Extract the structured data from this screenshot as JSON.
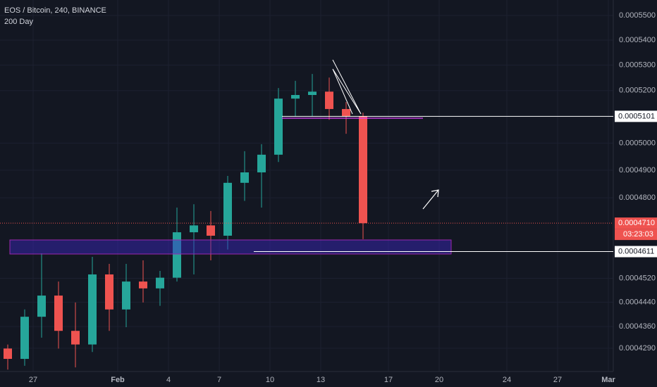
{
  "chart_data": {
    "type": "candlestick",
    "title": "EOS / Bitcoin, 240, BINANCE",
    "subtitle": "200 Day",
    "categories": [
      null,
      null,
      "27",
      null,
      null,
      null,
      null,
      "Feb",
      null,
      null,
      "4",
      null,
      null,
      "7",
      null,
      null,
      "10",
      null,
      null,
      "13",
      null,
      null,
      null,
      "17",
      null,
      null,
      "20",
      null,
      null,
      null,
      "24",
      null,
      null,
      "27",
      null,
      null,
      "Mar"
    ],
    "open": [
      0.0004289,
      0.0004256,
      0.0004392,
      0.0004462,
      0.0004346,
      0.0004302,
      0.0004533,
      0.0004416,
      0.0004509,
      0.0004486,
      0.0004522,
      0.0004678,
      0.0004702,
      0.0004666,
      0.0004854,
      0.0004892,
      0.0004957,
      0.0005169,
      0.0005183,
      0.0005196,
      0.0005129,
      0.0005102,
      null,
      null,
      null,
      null,
      null,
      null,
      null,
      null,
      null,
      null,
      null,
      null,
      null,
      null,
      null
    ],
    "high": [
      0.0004302,
      0.0004416,
      0.0004605,
      0.0004509,
      0.0004439,
      0.0004593,
      0.0004569,
      0.0004569,
      0.0004581,
      0.0004545,
      0.0004765,
      0.0004777,
      0.0004753,
      0.0004879,
      0.000497,
      0.0004996,
      0.000521,
      0.0005238,
      0.0005265,
      0.0005251,
      0.0005156,
      0.0005115,
      null,
      null,
      null,
      null,
      null,
      null,
      null,
      null,
      null,
      null,
      null,
      null,
      null,
      null,
      null
    ],
    "low": [
      0.0004222,
      0.0004234,
      0.0004324,
      0.0004289,
      0.0004229,
      0.0004278,
      0.0004346,
      0.0004358,
      0.0004439,
      0.0004428,
      0.0004509,
      0.0004533,
      0.0004581,
      0.0004618,
      0.0004789,
      0.0004765,
      0.000493,
      0.0005102,
      0.0005102,
      0.0005088,
      0.0005035,
      0.0004654,
      null,
      null,
      null,
      null,
      null,
      null,
      null,
      null,
      null,
      null,
      null,
      null,
      null,
      null,
      null
    ],
    "close": [
      0.0004256,
      0.0004392,
      0.0004462,
      0.0004346,
      0.0004302,
      0.0004533,
      0.0004416,
      0.0004509,
      0.0004486,
      0.0004522,
      0.0004678,
      0.0004702,
      0.0004666,
      0.0004854,
      0.0004892,
      0.0004957,
      0.0005169,
      0.0005183,
      0.0005196,
      0.0005129,
      0.0005102,
      0.000471,
      null,
      null,
      null,
      null,
      null,
      null,
      null,
      null,
      null,
      null,
      null,
      null,
      null,
      null,
      null
    ],
    "up_color": "#26a69a",
    "down_color": "#ef5350",
    "ylim": [
      0.0004216,
      0.0005564
    ],
    "log_scale": true,
    "grid": true,
    "yticks": [
      {
        "value": 0.00055,
        "label": "0.0005500"
      },
      {
        "value": 0.00054,
        "label": "0.0005400"
      },
      {
        "value": 0.00053,
        "label": "0.0005300"
      },
      {
        "value": 0.00052,
        "label": "0.0005200"
      },
      {
        "value": 0.0005,
        "label": "0.0005000"
      },
      {
        "value": 0.00049,
        "label": "0.0004900"
      },
      {
        "value": 0.00048,
        "label": "0.0004800"
      },
      {
        "value": 0.000452,
        "label": "0.0004520"
      },
      {
        "value": 0.000444,
        "label": "0.0004440"
      },
      {
        "value": 0.000436,
        "label": "0.0004360"
      },
      {
        "value": 0.000429,
        "label": "0.0004290"
      }
    ],
    "price_lines": [
      0.0005101,
      {
        "value": 0.000471,
        "label": "0.0004710"
      },
      0.0004611
    ],
    "countdown": "03:23:03"
  }
}
